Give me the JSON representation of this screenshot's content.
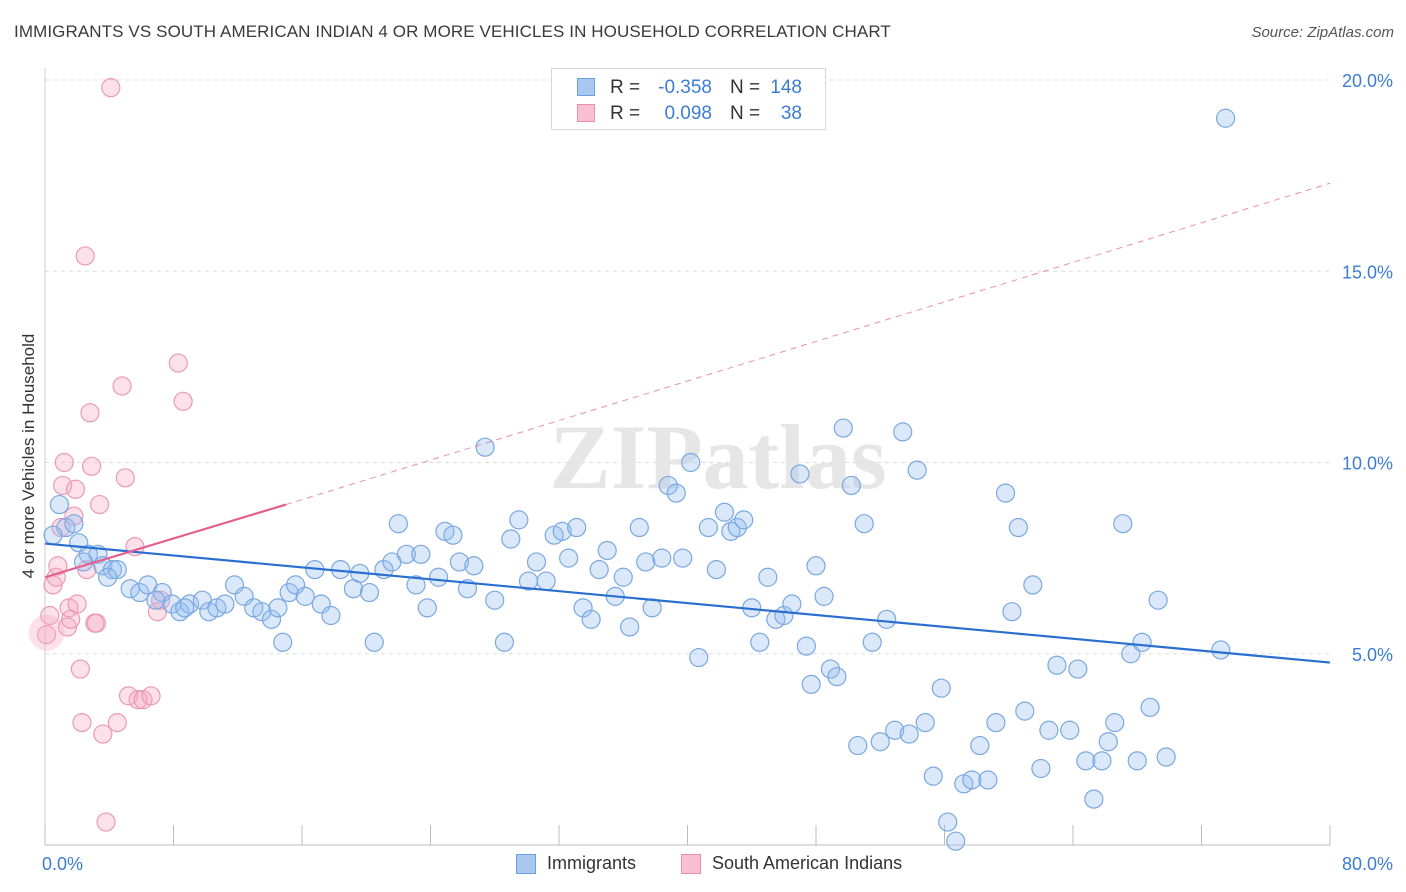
{
  "title": "IMMIGRANTS VS SOUTH AMERICAN INDIAN 4 OR MORE VEHICLES IN HOUSEHOLD CORRELATION CHART",
  "source": "Source: ZipAtlas.com",
  "watermark": "ZIPatlas",
  "legend": {
    "rows": [
      {
        "r_label": "R =",
        "r_value": "-0.358",
        "n_label": "N =",
        "n_value": "148",
        "color": "#a8c8f0",
        "border": "#6a9fe0"
      },
      {
        "r_label": "R =",
        "r_value": "0.098",
        "n_label": "N =",
        "n_value": "38",
        "color": "#f8c0d0",
        "border": "#e890aa"
      }
    ]
  },
  "bottom_legend": {
    "immigrants": "Immigrants",
    "south_american_indians": "South American Indians"
  },
  "colors": {
    "blue_fill": "rgba(150,190,240,0.35)",
    "blue_stroke": "#7aa8e0",
    "blue_line": "#2a6fcf",
    "pink_fill": "rgba(245,170,195,0.35)",
    "pink_stroke": "#ec9ab4",
    "pink_line": "#e2608e",
    "tick_text": "#3c7dd4",
    "grid": "#dcdcdc"
  },
  "chart_data": {
    "type": "scatter",
    "title": "IMMIGRANTS VS SOUTH AMERICAN INDIAN 4 OR MORE VEHICLES IN HOUSEHOLD CORRELATION CHART",
    "xlabel": "",
    "ylabel": "4 or more Vehicles in Household",
    "xlim": [
      0,
      80
    ],
    "ylim": [
      0,
      20
    ],
    "x_tick_labels": [
      "0.0%",
      "80.0%"
    ],
    "y_ticks": [
      5,
      10,
      15,
      20
    ],
    "y_tick_labels": [
      "5.0%",
      "10.0%",
      "15.0%",
      "20.0%"
    ],
    "grid": "horizontal dashed",
    "series": [
      {
        "name": "Immigrants",
        "points": [
          [
            0.9,
            8.9
          ],
          [
            1.3,
            8.3
          ],
          [
            1.8,
            8.4
          ],
          [
            2.1,
            7.9
          ],
          [
            2.7,
            7.6
          ],
          [
            3.3,
            7.6
          ],
          [
            3.6,
            7.3
          ],
          [
            4.2,
            7.2
          ],
          [
            4.5,
            7.2
          ],
          [
            5.3,
            6.7
          ],
          [
            5.9,
            6.6
          ],
          [
            6.4,
            6.8
          ],
          [
            7.3,
            6.6
          ],
          [
            7.9,
            6.3
          ],
          [
            8.4,
            6.1
          ],
          [
            9.0,
            6.3
          ],
          [
            9.8,
            6.4
          ],
          [
            10.2,
            6.1
          ],
          [
            10.7,
            6.2
          ],
          [
            11.2,
            6.3
          ],
          [
            11.8,
            6.8
          ],
          [
            12.4,
            6.5
          ],
          [
            13.0,
            6.2
          ],
          [
            13.5,
            6.1
          ],
          [
            14.1,
            5.9
          ],
          [
            14.5,
            6.2
          ],
          [
            14.8,
            5.3
          ],
          [
            15.2,
            6.6
          ],
          [
            15.6,
            6.8
          ],
          [
            16.2,
            6.5
          ],
          [
            16.8,
            7.2
          ],
          [
            17.2,
            6.3
          ],
          [
            17.8,
            6.0
          ],
          [
            18.4,
            7.2
          ],
          [
            19.2,
            6.7
          ],
          [
            19.6,
            7.1
          ],
          [
            20.2,
            6.6
          ],
          [
            20.5,
            5.3
          ],
          [
            21.1,
            7.2
          ],
          [
            21.6,
            7.4
          ],
          [
            22.0,
            8.4
          ],
          [
            22.5,
            7.6
          ],
          [
            23.1,
            6.8
          ],
          [
            23.4,
            7.6
          ],
          [
            23.8,
            6.2
          ],
          [
            24.5,
            7.0
          ],
          [
            24.9,
            8.2
          ],
          [
            25.4,
            8.1
          ],
          [
            25.8,
            7.4
          ],
          [
            26.3,
            6.7
          ],
          [
            26.7,
            7.3
          ],
          [
            27.4,
            10.4
          ],
          [
            28.0,
            6.4
          ],
          [
            28.6,
            5.3
          ],
          [
            29.0,
            8.0
          ],
          [
            29.5,
            8.5
          ],
          [
            30.1,
            6.9
          ],
          [
            30.6,
            7.4
          ],
          [
            31.2,
            6.9
          ],
          [
            31.7,
            8.1
          ],
          [
            32.2,
            8.2
          ],
          [
            32.6,
            7.5
          ],
          [
            33.1,
            8.3
          ],
          [
            33.5,
            6.2
          ],
          [
            34.0,
            5.9
          ],
          [
            34.5,
            7.2
          ],
          [
            35.0,
            7.7
          ],
          [
            35.5,
            6.5
          ],
          [
            36.0,
            7.0
          ],
          [
            36.4,
            5.7
          ],
          [
            37.0,
            8.3
          ],
          [
            37.4,
            7.4
          ],
          [
            37.8,
            6.2
          ],
          [
            38.4,
            7.5
          ],
          [
            38.8,
            9.4
          ],
          [
            39.3,
            9.2
          ],
          [
            39.7,
            7.5
          ],
          [
            40.2,
            10.0
          ],
          [
            40.7,
            4.9
          ],
          [
            41.3,
            8.3
          ],
          [
            41.8,
            7.2
          ],
          [
            42.3,
            8.7
          ],
          [
            42.7,
            8.2
          ],
          [
            43.1,
            8.3
          ],
          [
            43.5,
            8.5
          ],
          [
            44.0,
            6.2
          ],
          [
            44.5,
            5.3
          ],
          [
            45.0,
            7.0
          ],
          [
            45.5,
            5.9
          ],
          [
            46.0,
            6.0
          ],
          [
            46.5,
            6.3
          ],
          [
            47.0,
            9.7
          ],
          [
            47.4,
            5.2
          ],
          [
            47.7,
            4.2
          ],
          [
            48.0,
            7.3
          ],
          [
            48.5,
            6.5
          ],
          [
            48.9,
            4.6
          ],
          [
            49.3,
            4.4
          ],
          [
            49.7,
            10.9
          ],
          [
            50.2,
            9.4
          ],
          [
            50.6,
            2.6
          ],
          [
            51.0,
            8.4
          ],
          [
            51.5,
            5.3
          ],
          [
            52.0,
            2.7
          ],
          [
            52.4,
            5.9
          ],
          [
            52.9,
            3.0
          ],
          [
            53.4,
            10.8
          ],
          [
            53.8,
            2.9
          ],
          [
            54.3,
            9.8
          ],
          [
            54.8,
            3.2
          ],
          [
            55.3,
            1.8
          ],
          [
            55.8,
            4.1
          ],
          [
            56.2,
            0.6
          ],
          [
            56.7,
            0.1
          ],
          [
            57.2,
            1.6
          ],
          [
            57.7,
            1.7
          ],
          [
            58.2,
            2.6
          ],
          [
            58.7,
            1.7
          ],
          [
            59.2,
            3.2
          ],
          [
            59.8,
            9.2
          ],
          [
            60.2,
            6.1
          ],
          [
            60.6,
            8.3
          ],
          [
            61.0,
            3.5
          ],
          [
            61.5,
            6.8
          ],
          [
            62.0,
            2.0
          ],
          [
            62.5,
            3.0
          ],
          [
            63.0,
            4.7
          ],
          [
            63.8,
            3.0
          ],
          [
            64.3,
            4.6
          ],
          [
            64.8,
            2.2
          ],
          [
            65.3,
            1.2
          ],
          [
            65.8,
            2.2
          ],
          [
            66.2,
            2.7
          ],
          [
            66.6,
            3.2
          ],
          [
            67.1,
            8.4
          ],
          [
            67.6,
            5.0
          ],
          [
            68.0,
            2.2
          ],
          [
            68.3,
            5.3
          ],
          [
            68.8,
            3.6
          ],
          [
            69.3,
            6.4
          ],
          [
            69.8,
            2.3
          ],
          [
            73.2,
            5.1
          ],
          [
            73.5,
            19.0
          ],
          [
            0.5,
            8.1
          ],
          [
            2.4,
            7.4
          ],
          [
            3.9,
            7.0
          ],
          [
            6.9,
            6.4
          ],
          [
            8.7,
            6.2
          ]
        ]
      },
      {
        "name": "South American Indians",
        "points": [
          [
            0.1,
            5.5
          ],
          [
            0.3,
            6.0
          ],
          [
            0.5,
            6.8
          ],
          [
            0.7,
            7.0
          ],
          [
            0.8,
            7.3
          ],
          [
            1.0,
            8.3
          ],
          [
            1.1,
            9.4
          ],
          [
            1.2,
            10.0
          ],
          [
            1.4,
            5.7
          ],
          [
            1.5,
            6.2
          ],
          [
            1.6,
            5.9
          ],
          [
            1.8,
            8.6
          ],
          [
            1.9,
            9.3
          ],
          [
            2.0,
            6.3
          ],
          [
            2.2,
            4.6
          ],
          [
            2.3,
            3.2
          ],
          [
            2.5,
            15.4
          ],
          [
            2.6,
            7.2
          ],
          [
            2.8,
            11.3
          ],
          [
            2.9,
            9.9
          ],
          [
            3.1,
            5.8
          ],
          [
            3.2,
            5.8
          ],
          [
            3.4,
            8.9
          ],
          [
            3.6,
            2.9
          ],
          [
            3.8,
            0.6
          ],
          [
            4.1,
            19.8
          ],
          [
            4.5,
            3.2
          ],
          [
            4.8,
            12.0
          ],
          [
            5.0,
            9.6
          ],
          [
            5.2,
            3.9
          ],
          [
            5.6,
            7.8
          ],
          [
            5.8,
            3.8
          ],
          [
            6.1,
            3.8
          ],
          [
            6.6,
            3.9
          ],
          [
            7.0,
            6.1
          ],
          [
            7.2,
            6.4
          ],
          [
            8.3,
            12.6
          ],
          [
            8.6,
            11.6
          ]
        ]
      }
    ],
    "trend_lines": [
      {
        "series": "Immigrants",
        "x": [
          0,
          80
        ],
        "y": [
          7.88,
          4.77
        ]
      },
      {
        "series": "South American Indians",
        "x": [
          0,
          15
        ],
        "y": [
          7.0,
          8.9
        ],
        "dashed_extension_to": [
          80,
          17.3
        ]
      }
    ]
  }
}
